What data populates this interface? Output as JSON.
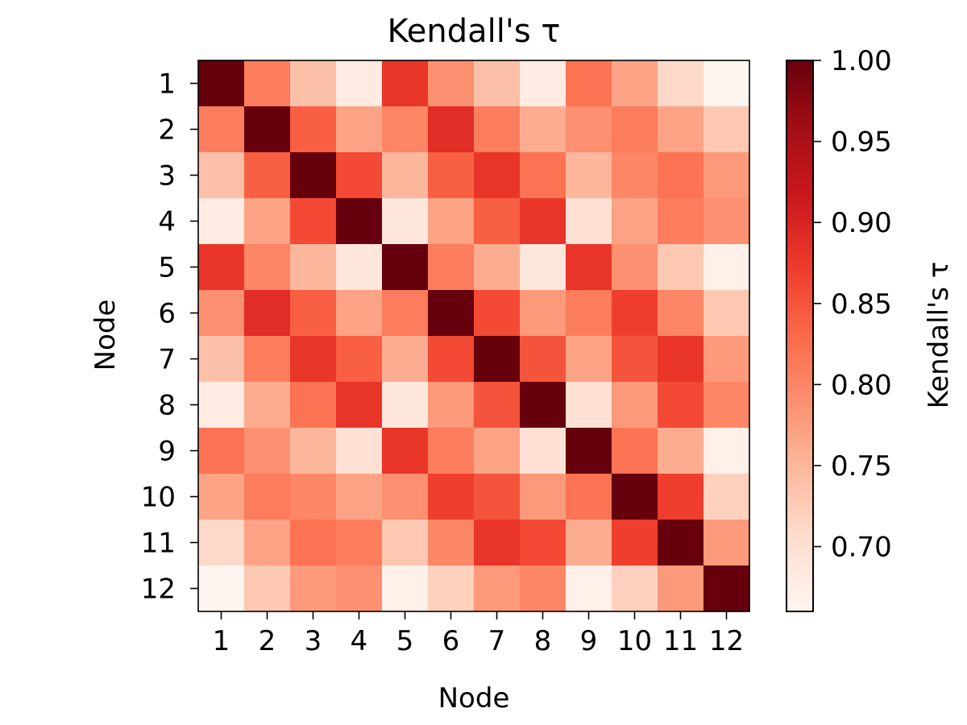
{
  "chart_data": {
    "type": "heatmap",
    "title": "Kendall's τ",
    "xlabel": "Node",
    "ylabel": "Node",
    "x_categories": [
      "1",
      "2",
      "3",
      "4",
      "5",
      "6",
      "7",
      "8",
      "9",
      "10",
      "11",
      "12"
    ],
    "y_categories": [
      "1",
      "2",
      "3",
      "4",
      "5",
      "6",
      "7",
      "8",
      "9",
      "10",
      "11",
      "12"
    ],
    "colormap": "Reds",
    "colorbar": {
      "label": "Kendall's τ",
      "range": [
        0.66,
        1.0
      ],
      "ticks": [
        0.7,
        0.75,
        0.8,
        0.85,
        0.9,
        0.95,
        1.0
      ],
      "tick_labels": [
        "0.70",
        "0.75",
        "0.80",
        "0.85",
        "0.90",
        "0.95",
        "1.00"
      ]
    },
    "grid": false,
    "values": [
      [
        1.0,
        0.81,
        0.74,
        0.68,
        0.88,
        0.79,
        0.74,
        0.68,
        0.82,
        0.77,
        0.71,
        0.66
      ],
      [
        0.81,
        1.0,
        0.84,
        0.77,
        0.8,
        0.89,
        0.81,
        0.76,
        0.79,
        0.81,
        0.77,
        0.73
      ],
      [
        0.74,
        0.84,
        1.0,
        0.86,
        0.75,
        0.84,
        0.88,
        0.82,
        0.75,
        0.8,
        0.82,
        0.78
      ],
      [
        0.68,
        0.77,
        0.86,
        1.0,
        0.69,
        0.77,
        0.84,
        0.88,
        0.7,
        0.77,
        0.81,
        0.79
      ],
      [
        0.88,
        0.8,
        0.75,
        0.69,
        1.0,
        0.81,
        0.76,
        0.69,
        0.88,
        0.79,
        0.73,
        0.67
      ],
      [
        0.79,
        0.89,
        0.84,
        0.77,
        0.81,
        1.0,
        0.86,
        0.78,
        0.81,
        0.87,
        0.8,
        0.73
      ],
      [
        0.74,
        0.81,
        0.88,
        0.84,
        0.76,
        0.86,
        1.0,
        0.85,
        0.77,
        0.85,
        0.88,
        0.78
      ],
      [
        0.68,
        0.76,
        0.82,
        0.88,
        0.69,
        0.78,
        0.85,
        1.0,
        0.7,
        0.78,
        0.86,
        0.8
      ],
      [
        0.82,
        0.79,
        0.75,
        0.7,
        0.88,
        0.81,
        0.77,
        0.7,
        1.0,
        0.82,
        0.76,
        0.67
      ],
      [
        0.77,
        0.81,
        0.8,
        0.77,
        0.79,
        0.87,
        0.85,
        0.78,
        0.82,
        1.0,
        0.87,
        0.72
      ],
      [
        0.71,
        0.77,
        0.82,
        0.81,
        0.73,
        0.8,
        0.88,
        0.86,
        0.76,
        0.87,
        1.0,
        0.78
      ],
      [
        0.66,
        0.73,
        0.78,
        0.79,
        0.67,
        0.72,
        0.78,
        0.8,
        0.67,
        0.72,
        0.78,
        1.0
      ]
    ]
  }
}
